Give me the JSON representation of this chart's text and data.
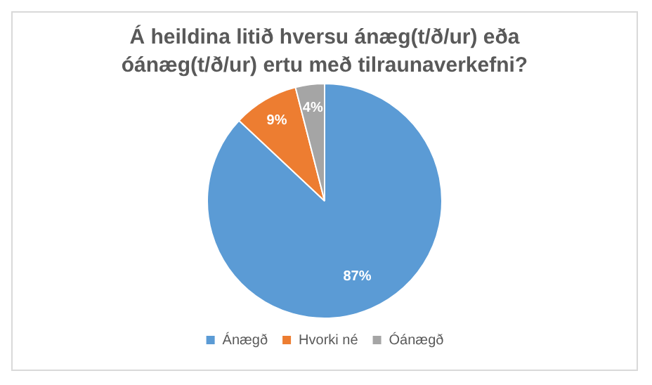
{
  "chart_data": {
    "type": "pie",
    "title": "Á heildina litið hversu ánæg(t/ð/ur) eða óánæg(t/ð/ur) ertu með tilraunaverkefni?",
    "categories": [
      "Ánægð",
      "Hvorki né",
      "Óánægð"
    ],
    "values": [
      87,
      9,
      4
    ],
    "colors": [
      "#5b9bd5",
      "#ed7d31",
      "#a5a5a5"
    ],
    "value_labels": [
      "87%",
      "9%",
      "4%"
    ],
    "legend": "bottom"
  }
}
